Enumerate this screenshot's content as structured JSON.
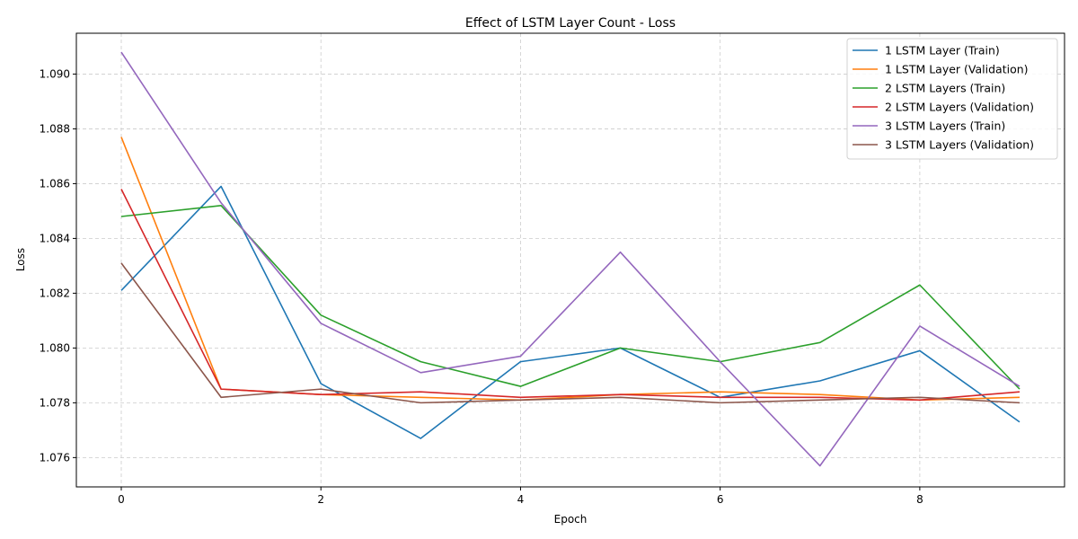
{
  "chart_data": {
    "type": "line",
    "title": "Effect of LSTM Layer Count - Loss",
    "xlabel": "Epoch",
    "ylabel": "Loss",
    "x": [
      0,
      1,
      2,
      3,
      4,
      5,
      6,
      7,
      8,
      9
    ],
    "xlim": [
      -0.45,
      9.45
    ],
    "ylim": [
      1.07493,
      1.09149
    ],
    "xticks": [
      0,
      2,
      4,
      6,
      8
    ],
    "yticks": [
      1.076,
      1.078,
      1.08,
      1.082,
      1.084,
      1.086,
      1.088,
      1.09
    ],
    "ytick_labels": [
      "1.076",
      "1.078",
      "1.080",
      "1.082",
      "1.084",
      "1.086",
      "1.088",
      "1.090"
    ],
    "grid": true,
    "legend_position": "top-right",
    "series": [
      {
        "name": "1 LSTM Layer (Train)",
        "color": "#1f77b4",
        "values": [
          1.0821,
          1.0859,
          1.0787,
          1.0767,
          1.0795,
          1.08,
          1.0782,
          1.0788,
          1.0799,
          1.0773
        ]
      },
      {
        "name": "1 LSTM Layer (Validation)",
        "color": "#ff7f0e",
        "values": [
          1.0877,
          1.0785,
          1.0783,
          1.0782,
          1.0781,
          1.0783,
          1.0784,
          1.0783,
          1.0781,
          1.0782
        ]
      },
      {
        "name": "2 LSTM Layers (Train)",
        "color": "#2ca02c",
        "values": [
          1.0848,
          1.0852,
          1.0812,
          1.0795,
          1.0786,
          1.08,
          1.0795,
          1.0802,
          1.0823,
          1.0785
        ]
      },
      {
        "name": "2 LSTM Layers (Validation)",
        "color": "#d62728",
        "values": [
          1.0858,
          1.0785,
          1.0783,
          1.0784,
          1.0782,
          1.0783,
          1.0782,
          1.0782,
          1.0781,
          1.0784
        ]
      },
      {
        "name": "3 LSTM Layers (Train)",
        "color": "#9467bd",
        "values": [
          1.0908,
          1.0853,
          1.0809,
          1.0791,
          1.0797,
          1.0835,
          1.0795,
          1.0757,
          1.0808,
          1.0786
        ]
      },
      {
        "name": "3 LSTM Layers (Validation)",
        "color": "#8c564b",
        "values": [
          1.0831,
          1.0782,
          1.0785,
          1.078,
          1.0781,
          1.0782,
          1.078,
          1.0781,
          1.0782,
          1.078
        ]
      }
    ]
  }
}
